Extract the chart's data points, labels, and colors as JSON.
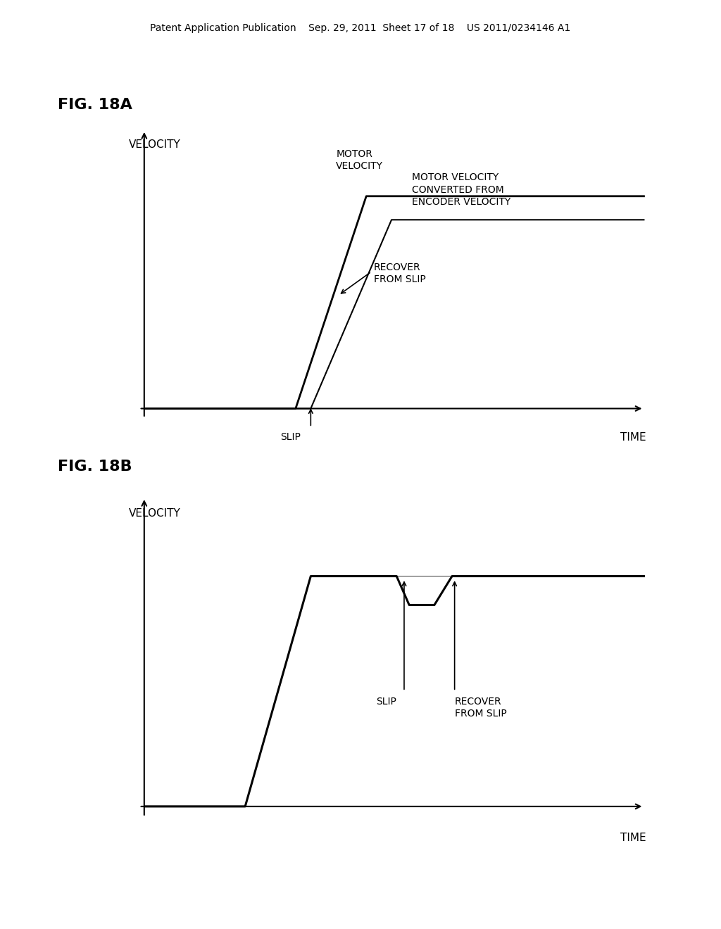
{
  "background_color": "#ffffff",
  "header_text": "Patent Application Publication    Sep. 29, 2011  Sheet 17 of 18    US 2011/0234146 A1",
  "fig18a_label": "FIG. 18A",
  "fig18b_label": "FIG. 18B",
  "velocity_label": "VELOCITY",
  "time_label": "TIME",
  "motor_velocity_label": "MOTOR\nVELOCITY",
  "encoder_velocity_label": "MOTOR VELOCITY\nCONVERTED FROM\nENCODER VELOCITY",
  "slip_label_a": "SLIP",
  "recover_label_a": "RECOVER\nFROM SLIP",
  "slip_label_b": "SLIP",
  "recover_label_b": "RECOVER\nFROM SLIP",
  "font_size_header": 10,
  "font_size_label": 11,
  "font_size_fig": 16,
  "font_size_annot": 10
}
